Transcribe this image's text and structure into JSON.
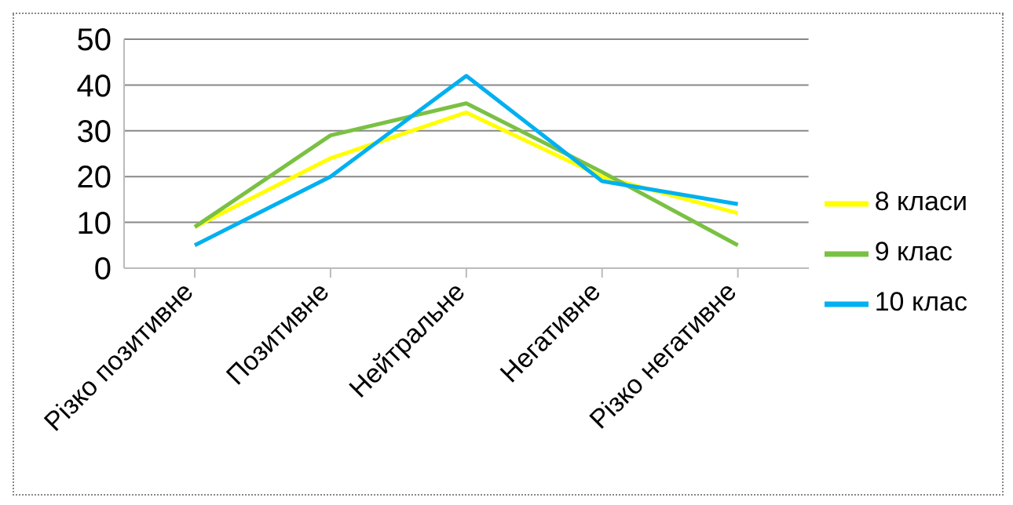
{
  "chart_data": {
    "type": "line",
    "categories": [
      "Різко позитивне",
      "Позитивне",
      "Нейтральне",
      "Негативне",
      "Різко негативне"
    ],
    "series": [
      {
        "name": "8 класи",
        "color": "#ffff00",
        "values": [
          9,
          24,
          34,
          20,
          12
        ]
      },
      {
        "name": "9 клас",
        "color": "#7ac143",
        "values": [
          9,
          29,
          36,
          21,
          5
        ]
      },
      {
        "name": "10 клас",
        "color": "#00b0f0",
        "values": [
          5,
          20,
          42,
          19,
          14
        ]
      }
    ],
    "ylim": [
      0,
      50
    ],
    "yticks": [
      0,
      10,
      20,
      30,
      40,
      50
    ],
    "grid": "y",
    "legend": "right",
    "marker": "none",
    "line_style": "solid"
  }
}
